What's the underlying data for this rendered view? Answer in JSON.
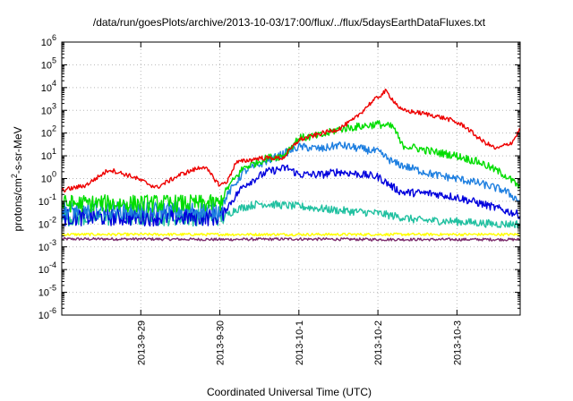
{
  "chart_data": {
    "type": "line",
    "title": "/data/run/goesPlots/archive/2013-10-03/17:00/flux/../flux/5daysEarthDataFluxes.txt",
    "xlabel": "Coordinated Universal Time (UTC)",
    "ylabel_parts": [
      "protons/cm",
      "2",
      "-s-sr-MeV"
    ],
    "y_scale": "log",
    "ylim": [
      1e-06,
      1000000.0
    ],
    "y_ticks": [
      {
        "value": 1e-06,
        "base": "10",
        "exp": "-6"
      },
      {
        "value": 1e-05,
        "base": "10",
        "exp": "-5"
      },
      {
        "value": 0.0001,
        "base": "10",
        "exp": "-4"
      },
      {
        "value": 0.001,
        "base": "10",
        "exp": "-3"
      },
      {
        "value": 0.01,
        "base": "10",
        "exp": "-2"
      },
      {
        "value": 0.1,
        "base": "10",
        "exp": "-1"
      },
      {
        "value": 1.0,
        "base": "10",
        "exp": "0"
      },
      {
        "value": 10.0,
        "base": "10",
        "exp": "1"
      },
      {
        "value": 100.0,
        "base": "10",
        "exp": "2"
      },
      {
        "value": 1000.0,
        "base": "10",
        "exp": "3"
      },
      {
        "value": 10000.0,
        "base": "10",
        "exp": "4"
      },
      {
        "value": 100000.0,
        "base": "10",
        "exp": "5"
      },
      {
        "value": 1000000.0,
        "base": "10",
        "exp": "6"
      }
    ],
    "x_range_days": [
      0,
      5.8
    ],
    "x_ticks": [
      {
        "label": "2013-9-29",
        "day": 1
      },
      {
        "label": "2013-9-30",
        "day": 2
      },
      {
        "label": "2013-10-1",
        "day": 3
      },
      {
        "label": "2013-10-2",
        "day": 4
      },
      {
        "label": "2013-10-3",
        "day": 5
      }
    ],
    "grid": true,
    "legend": "none",
    "series": [
      {
        "color": "#7b2a6b",
        "points": [
          [
            0,
            0.0022
          ],
          [
            1,
            0.0022
          ],
          [
            2,
            0.0021
          ],
          [
            3,
            0.0022
          ],
          [
            4,
            0.0021
          ],
          [
            5,
            0.0021
          ],
          [
            5.8,
            0.0021
          ]
        ]
      },
      {
        "color": "#ffff00",
        "points": [
          [
            0,
            0.0035
          ],
          [
            1,
            0.0035
          ],
          [
            2,
            0.0035
          ],
          [
            3,
            0.0035
          ],
          [
            4,
            0.0035
          ],
          [
            5,
            0.0035
          ],
          [
            5.8,
            0.0035
          ]
        ]
      },
      {
        "color": "#20c0a0",
        "points": [
          [
            0,
            0.02
          ],
          [
            1,
            0.02
          ],
          [
            1.9,
            0.02
          ],
          [
            2.05,
            0.02
          ],
          [
            2.2,
            0.045
          ],
          [
            2.5,
            0.08
          ],
          [
            3,
            0.06
          ],
          [
            3.5,
            0.04
          ],
          [
            4,
            0.03
          ],
          [
            4.5,
            0.015
          ],
          [
            5,
            0.013
          ],
          [
            5.5,
            0.01
          ],
          [
            5.8,
            0.01
          ]
        ]
      },
      {
        "color": "#0000dd",
        "points": [
          [
            0,
            0.02
          ],
          [
            0.5,
            0.02
          ],
          [
            1,
            0.02
          ],
          [
            1.5,
            0.02
          ],
          [
            2,
            0.02
          ],
          [
            2.1,
            0.06
          ],
          [
            2.3,
            0.5
          ],
          [
            2.6,
            2
          ],
          [
            2.85,
            3
          ],
          [
            3,
            1.5
          ],
          [
            3.3,
            1.5
          ],
          [
            3.5,
            2
          ],
          [
            3.8,
            1.5
          ],
          [
            4,
            1.2
          ],
          [
            4.2,
            0.4
          ],
          [
            4.3,
            0.25
          ],
          [
            4.7,
            0.22
          ],
          [
            5,
            0.15
          ],
          [
            5.3,
            0.08
          ],
          [
            5.6,
            0.04
          ],
          [
            5.8,
            0.025
          ]
        ]
      },
      {
        "color": "#1e7fe0",
        "points": [
          [
            0,
            0.04
          ],
          [
            1,
            0.04
          ],
          [
            2,
            0.04
          ],
          [
            2.1,
            0.2
          ],
          [
            2.3,
            2
          ],
          [
            2.6,
            6
          ],
          [
            2.8,
            12
          ],
          [
            3,
            25
          ],
          [
            3.3,
            20
          ],
          [
            3.5,
            30
          ],
          [
            3.8,
            20
          ],
          [
            4,
            15
          ],
          [
            4.2,
            5
          ],
          [
            4.4,
            3
          ],
          [
            4.7,
            1.5
          ],
          [
            5,
            1
          ],
          [
            5.3,
            0.6
          ],
          [
            5.6,
            0.3
          ],
          [
            5.8,
            0.1
          ]
        ]
      },
      {
        "color": "#00dd00",
        "points": [
          [
            0,
            0.08
          ],
          [
            1,
            0.08
          ],
          [
            2,
            0.08
          ],
          [
            2.1,
            0.4
          ],
          [
            2.3,
            3
          ],
          [
            2.6,
            8
          ],
          [
            2.8,
            10
          ],
          [
            3,
            60
          ],
          [
            3.3,
            80
          ],
          [
            3.5,
            150
          ],
          [
            3.8,
            200
          ],
          [
            4,
            250
          ],
          [
            4.2,
            180
          ],
          [
            4.3,
            30
          ],
          [
            4.7,
            15
          ],
          [
            5,
            10
          ],
          [
            5.3,
            5
          ],
          [
            5.6,
            1.5
          ],
          [
            5.8,
            0.4
          ]
        ]
      },
      {
        "color": "#ee0000",
        "points": [
          [
            0,
            0.3
          ],
          [
            0.3,
            0.5
          ],
          [
            0.6,
            2.5
          ],
          [
            0.9,
            1.2
          ],
          [
            1.2,
            0.4
          ],
          [
            1.5,
            1.5
          ],
          [
            1.8,
            3.5
          ],
          [
            2,
            0.5
          ],
          [
            2.1,
            0.8
          ],
          [
            2.2,
            5
          ],
          [
            2.5,
            8
          ],
          [
            2.8,
            8
          ],
          [
            3,
            50
          ],
          [
            3.3,
            100
          ],
          [
            3.5,
            150
          ],
          [
            3.7,
            400
          ],
          [
            3.9,
            2000
          ],
          [
            4.1,
            7000
          ],
          [
            4.3,
            1000
          ],
          [
            4.5,
            800
          ],
          [
            4.7,
            600
          ],
          [
            4.9,
            400
          ],
          [
            5.1,
            200
          ],
          [
            5.3,
            50
          ],
          [
            5.5,
            20
          ],
          [
            5.7,
            40
          ],
          [
            5.8,
            150
          ]
        ]
      }
    ]
  }
}
